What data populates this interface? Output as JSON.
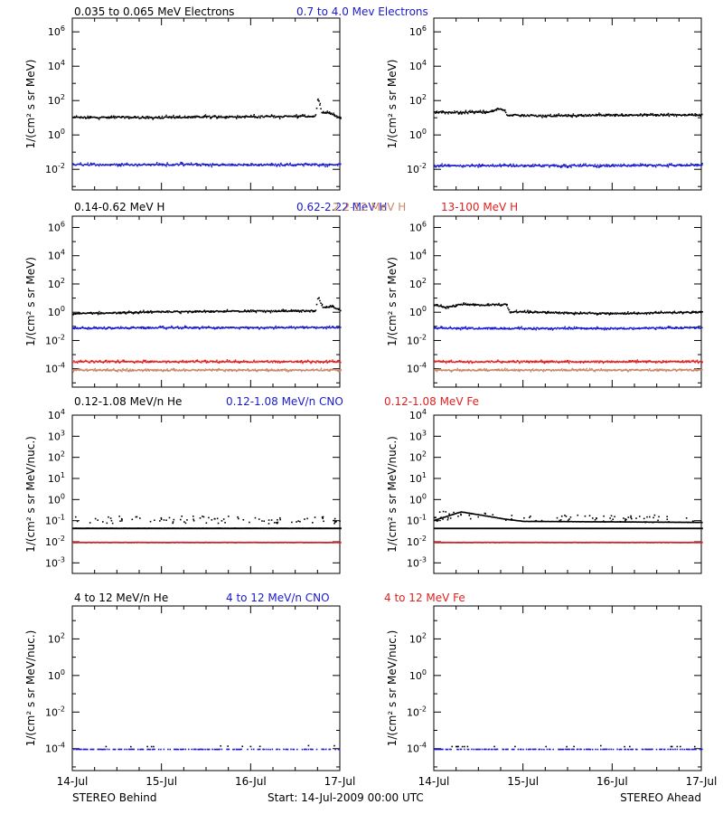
{
  "colors": {
    "black": "#000000",
    "blue": "#1a1acd",
    "red": "#e02020",
    "tan": "#c88866"
  },
  "footer": {
    "left": "STEREO Behind",
    "center": "Start: 14-Jul-2009 00:00 UTC",
    "right": "STEREO Ahead"
  },
  "chart_data": [
    {
      "type": "scatter",
      "row": 1,
      "title_labels": [
        {
          "text": "0.035 to 0.065 MeV Electrons",
          "color": "black"
        },
        {
          "text": "0.7 to 4.0 Mev Electrons",
          "color": "blue"
        }
      ],
      "ylabel": "1/(cm² s sr MeV)",
      "yscale": "log",
      "ylim_exp": [
        -3.2,
        6.8
      ],
      "yticks_exp": [
        -2,
        0,
        2,
        4,
        6
      ],
      "x_ticks": [
        "14-Jul",
        "15-Jul",
        "16-Jul",
        "17-Jul"
      ],
      "xlim_days": [
        0,
        3
      ],
      "panels": [
        {
          "spacecraft": "Behind",
          "series": [
            {
              "label": "0.035 to 0.065 MeV Electrons",
              "color": "black",
              "points": [
                [
                  0,
                  1.05
                ],
                [
                  0.5,
                  1.07
                ],
                [
                  1.0,
                  1.05
                ],
                [
                  1.5,
                  1.1
                ],
                [
                  2.0,
                  1.1
                ],
                [
                  2.5,
                  1.12
                ],
                [
                  2.72,
                  1.12
                ],
                [
                  2.75,
                  2.2
                ],
                [
                  2.79,
                  1.3
                ],
                [
                  2.85,
                  1.35
                ],
                [
                  3.0,
                  1.05
                ]
              ]
            },
            {
              "label": "0.7 to 4.0 Mev Electrons",
              "color": "blue",
              "points": [
                [
                  0,
                  -1.7
                ],
                [
                  1.0,
                  -1.68
                ],
                [
                  2.0,
                  -1.7
                ],
                [
                  3.0,
                  -1.68
                ]
              ]
            }
          ]
        },
        {
          "spacecraft": "Ahead",
          "series": [
            {
              "label": "0.035 to 0.065 MeV Electrons",
              "color": "black",
              "points": [
                [
                  0,
                  1.35
                ],
                [
                  0.6,
                  1.38
                ],
                [
                  0.74,
                  1.55
                ],
                [
                  0.78,
                  1.45
                ],
                [
                  0.82,
                  1.2
                ],
                [
                  1.2,
                  1.15
                ],
                [
                  2.0,
                  1.2
                ],
                [
                  3.0,
                  1.2
                ]
              ]
            },
            {
              "label": "0.7 to 4.0 Mev Electrons",
              "color": "blue",
              "points": [
                [
                  0,
                  -1.75
                ],
                [
                  1.0,
                  -1.75
                ],
                [
                  2.0,
                  -1.75
                ],
                [
                  3.0,
                  -1.72
                ]
              ]
            }
          ]
        }
      ]
    },
    {
      "type": "scatter",
      "row": 2,
      "title_labels": [
        {
          "text": "0.14-0.62 MeV H",
          "color": "black"
        },
        {
          "text": "0.62-2.22 MeV H",
          "color": "blue"
        },
        {
          "text": "2.2-12 MeV H",
          "color": "tan"
        },
        {
          "text": "13-100 MeV H",
          "color": "red"
        }
      ],
      "ylabel": "1/(cm² s sr MeV)",
      "yscale": "log",
      "ylim_exp": [
        -5.3,
        6.8
      ],
      "yticks_exp": [
        -4,
        -2,
        0,
        2,
        4,
        6
      ],
      "x_ticks": [
        "14-Jul",
        "15-Jul",
        "16-Jul",
        "17-Jul"
      ],
      "xlim_days": [
        0,
        3
      ],
      "panels": [
        {
          "spacecraft": "Behind",
          "series": [
            {
              "label": "0.14-0.62 MeV H",
              "color": "black",
              "points": [
                [
                  0,
                  -0.05
                ],
                [
                  0.5,
                  0.0
                ],
                [
                  1.0,
                  0.08
                ],
                [
                  1.5,
                  0.1
                ],
                [
                  2.0,
                  0.12
                ],
                [
                  2.6,
                  0.15
                ],
                [
                  2.72,
                  0.15
                ],
                [
                  2.75,
                  1.2
                ],
                [
                  2.8,
                  0.4
                ],
                [
                  2.9,
                  0.45
                ],
                [
                  3.0,
                  0.2
                ]
              ]
            },
            {
              "label": "0.62-2.22 MeV H",
              "color": "blue",
              "points": [
                [
                  0,
                  -1.08
                ],
                [
                  1.0,
                  -1.05
                ],
                [
                  2.0,
                  -1.05
                ],
                [
                  3.0,
                  -1.02
                ]
              ]
            },
            {
              "label": "13-100 MeV H",
              "color": "red",
              "points": [
                [
                  0,
                  -3.45
                ],
                [
                  1.0,
                  -3.45
                ],
                [
                  2.0,
                  -3.45
                ],
                [
                  3.0,
                  -3.45
                ]
              ]
            },
            {
              "label": "2.2-12 MeV H",
              "color": "tan",
              "points": [
                [
                  0,
                  -4.05
                ],
                [
                  1.0,
                  -4.05
                ],
                [
                  2.0,
                  -4.05
                ],
                [
                  3.0,
                  -4.05
                ]
              ]
            }
          ]
        },
        {
          "spacecraft": "Ahead",
          "series": [
            {
              "label": "0.14-0.62 MeV H",
              "color": "black",
              "points": [
                [
                  0,
                  0.6
                ],
                [
                  0.12,
                  0.38
                ],
                [
                  0.3,
                  0.6
                ],
                [
                  0.5,
                  0.55
                ],
                [
                  0.8,
                  0.6
                ],
                [
                  0.85,
                  0.05
                ],
                [
                  1.0,
                  0.08
                ],
                [
                  1.5,
                  0.0
                ],
                [
                  2.0,
                  -0.05
                ],
                [
                  3.0,
                  0.05
                ]
              ]
            },
            {
              "label": "0.62-2.22 MeV H",
              "color": "blue",
              "points": [
                [
                  0,
                  -1.08
                ],
                [
                  1.0,
                  -1.1
                ],
                [
                  2.0,
                  -1.1
                ],
                [
                  3.0,
                  -1.05
                ]
              ]
            },
            {
              "label": "13-100 MeV H",
              "color": "red",
              "points": [
                [
                  0,
                  -3.45
                ],
                [
                  1.0,
                  -3.45
                ],
                [
                  2.0,
                  -3.45
                ],
                [
                  3.0,
                  -3.45
                ]
              ]
            },
            {
              "label": "2.2-12 MeV H",
              "color": "tan",
              "points": [
                [
                  0,
                  -4.05
                ],
                [
                  1.0,
                  -4.05
                ],
                [
                  2.0,
                  -4.05
                ],
                [
                  3.0,
                  -4.05
                ]
              ]
            }
          ]
        }
      ]
    },
    {
      "type": "scatter",
      "row": 3,
      "title_labels": [
        {
          "text": "0.12-1.08 MeV/n He",
          "color": "black"
        },
        {
          "text": "0.12-1.08 MeV/n CNO",
          "color": "blue"
        },
        {
          "text": "0.12-1.08 MeV Fe",
          "color": "red"
        }
      ],
      "ylabel": "1/(cm² s sr MeV/nuc.)",
      "yscale": "log",
      "ylim_exp": [
        -3.5,
        4
      ],
      "yticks_exp": [
        -3,
        -2,
        -1,
        0,
        1,
        2,
        3,
        4
      ],
      "x_ticks": [
        "14-Jul",
        "15-Jul",
        "16-Jul",
        "17-Jul"
      ],
      "xlim_days": [
        0,
        3
      ],
      "panels": [
        {
          "spacecraft": "Behind",
          "series": [
            {
              "label": "0.12-1.08 MeV/n He",
              "color": "black",
              "baseline_exp": -1.33,
              "upper_exp": -1.0,
              "points": [
                [
                  0,
                  -1.33
                ],
                [
                  3.0,
                  -1.33
                ]
              ]
            },
            {
              "label": "0.12-1.08 MeV/n CNO",
              "color": "blue",
              "points": [
                [
                  0,
                  -2.0
                ],
                [
                  3.0,
                  -2.0
                ]
              ]
            },
            {
              "label": "0.12-1.08 MeV Fe",
              "color": "red",
              "points": [
                [
                  0,
                  -2.0
                ],
                [
                  3.0,
                  -2.0
                ]
              ]
            }
          ]
        },
        {
          "spacecraft": "Ahead",
          "series": [
            {
              "label": "0.12-1.08 MeV/n He",
              "color": "black",
              "baseline_exp": -1.33,
              "upper_exp": -0.95,
              "points": [
                [
                  0,
                  -0.95
                ],
                [
                  0.3,
                  -0.55
                ],
                [
                  0.8,
                  -0.9
                ],
                [
                  1.0,
                  -1.0
                ],
                [
                  3.0,
                  -1.05
                ]
              ]
            },
            {
              "label": "0.12-1.08 MeV/n CNO",
              "color": "blue",
              "points": [
                [
                  0,
                  -2.0
                ],
                [
                  3.0,
                  -2.0
                ]
              ]
            },
            {
              "label": "0.12-1.08 MeV Fe",
              "color": "red",
              "points": [
                [
                  0,
                  -2.0
                ],
                [
                  3.0,
                  -2.0
                ]
              ]
            }
          ]
        }
      ]
    },
    {
      "type": "scatter",
      "row": 4,
      "title_labels": [
        {
          "text": "4 to 12 MeV/n He",
          "color": "black"
        },
        {
          "text": "4 to 12 MeV/n CNO",
          "color": "blue"
        },
        {
          "text": "4 to 12 MeV Fe",
          "color": "red"
        }
      ],
      "ylabel": "1/(cm² s sr MeV/nuc.)",
      "yscale": "log",
      "ylim_exp": [
        -5.2,
        3.8
      ],
      "yticks_exp": [
        -4,
        -2,
        0,
        2
      ],
      "x_ticks": [
        "14-Jul",
        "15-Jul",
        "16-Jul",
        "17-Jul"
      ],
      "xlim_days": [
        0,
        3
      ],
      "panels": [
        {
          "spacecraft": "Behind",
          "series": [
            {
              "label": "4 to 12 MeV/n He",
              "color": "black",
              "points": [
                [
                  0.2,
                  -3.85
                ],
                [
                  0.5,
                  -3.85
                ],
                [
                  1.1,
                  -3.85
                ],
                [
                  1.5,
                  -3.8
                ],
                [
                  2.0,
                  -3.85
                ],
                [
                  2.5,
                  -3.8
                ]
              ]
            },
            {
              "label": "4 to 12 MeV/n CNO",
              "color": "blue",
              "points": [
                [
                  0,
                  -4.0
                ],
                [
                  3.0,
                  -4.0
                ]
              ]
            },
            {
              "label": "4 to 12 MeV Fe",
              "color": "red",
              "points": []
            }
          ]
        },
        {
          "spacecraft": "Ahead",
          "series": [
            {
              "label": "4 to 12 MeV/n He",
              "color": "black",
              "points": [
                [
                  0.9,
                  -3.85
                ],
                [
                  1.3,
                  -3.85
                ],
                [
                  1.6,
                  -3.85
                ],
                [
                  1.9,
                  -3.8
                ],
                [
                  2.0,
                  -3.85
                ]
              ]
            },
            {
              "label": "4 to 12 MeV/n CNO",
              "color": "blue",
              "points": [
                [
                  0,
                  -4.0
                ],
                [
                  3.0,
                  -4.0
                ]
              ]
            },
            {
              "label": "4 to 12 MeV Fe",
              "color": "red",
              "points": []
            }
          ]
        }
      ]
    }
  ]
}
